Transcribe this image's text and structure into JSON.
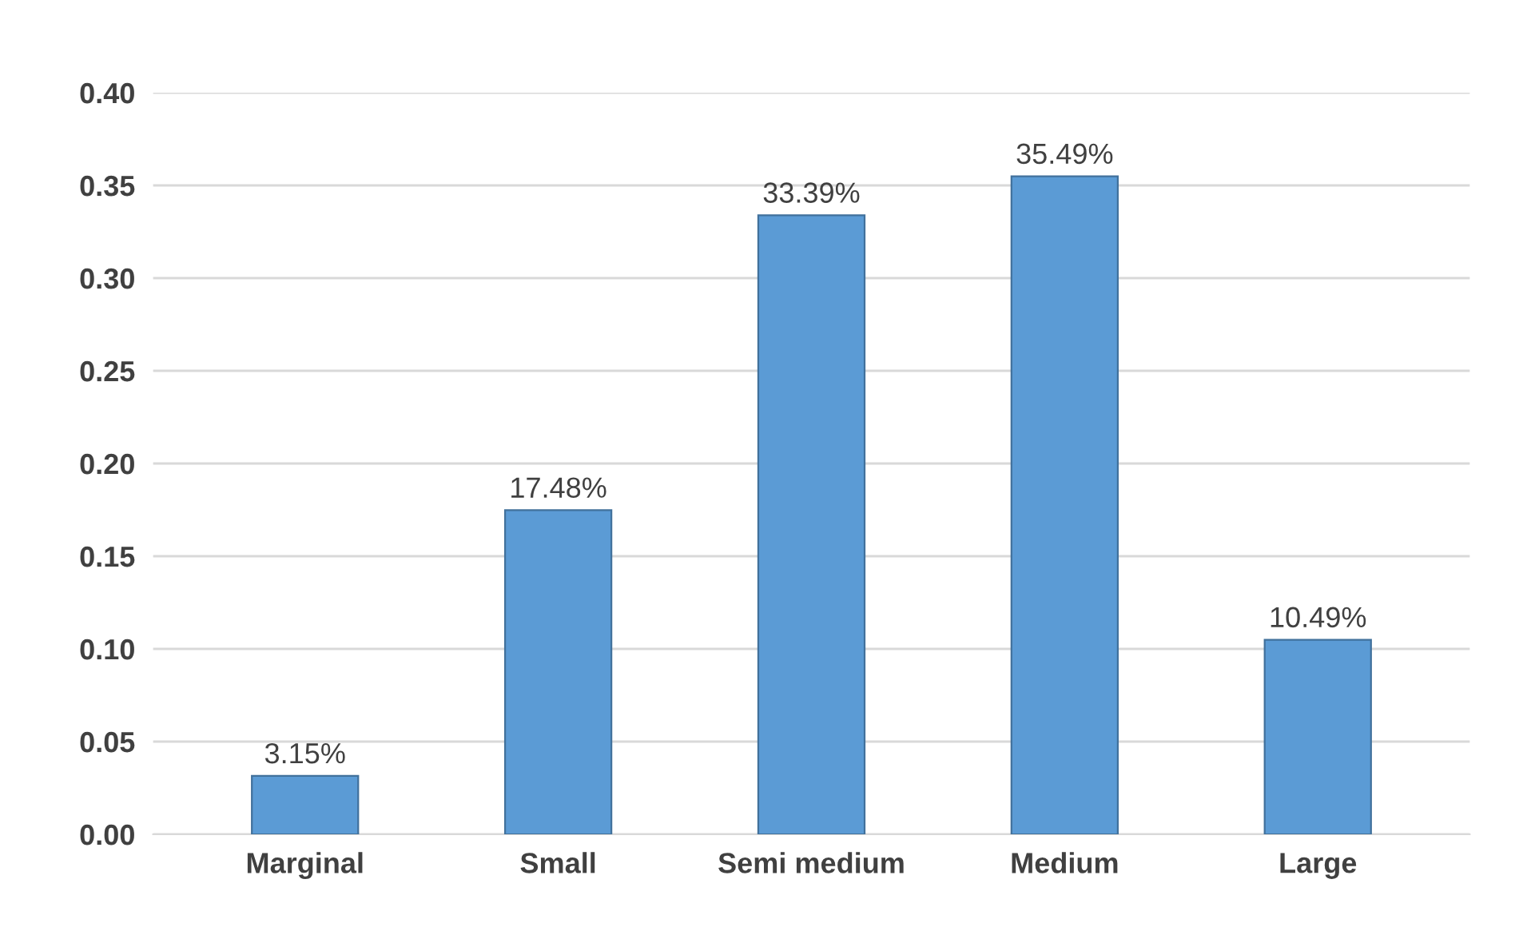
{
  "chart_data": {
    "type": "bar",
    "categories": [
      "Marginal",
      "Small",
      "Semi medium",
      "Medium",
      "Large"
    ],
    "values": [
      0.0315,
      0.1748,
      0.3339,
      0.3549,
      0.1049
    ],
    "value_labels": [
      "3.15%",
      "17.48%",
      "33.39%",
      "35.49%",
      "10.49%"
    ],
    "color": "#5b9bd5",
    "ylim": [
      0,
      0.4
    ],
    "yticks": [
      {
        "value": 0,
        "label": "0.00"
      },
      {
        "value": 0.05,
        "label": "0.05"
      },
      {
        "value": 0.1,
        "label": "0.10"
      },
      {
        "value": 0.15,
        "label": "0.15"
      },
      {
        "value": 0.2,
        "label": "0.20"
      },
      {
        "value": 0.25,
        "label": "0.25"
      },
      {
        "value": 0.3,
        "label": "0.30"
      },
      {
        "value": 0.35,
        "label": "0.35"
      },
      {
        "value": 0.4,
        "label": "0.40"
      }
    ],
    "grid": "y"
  }
}
